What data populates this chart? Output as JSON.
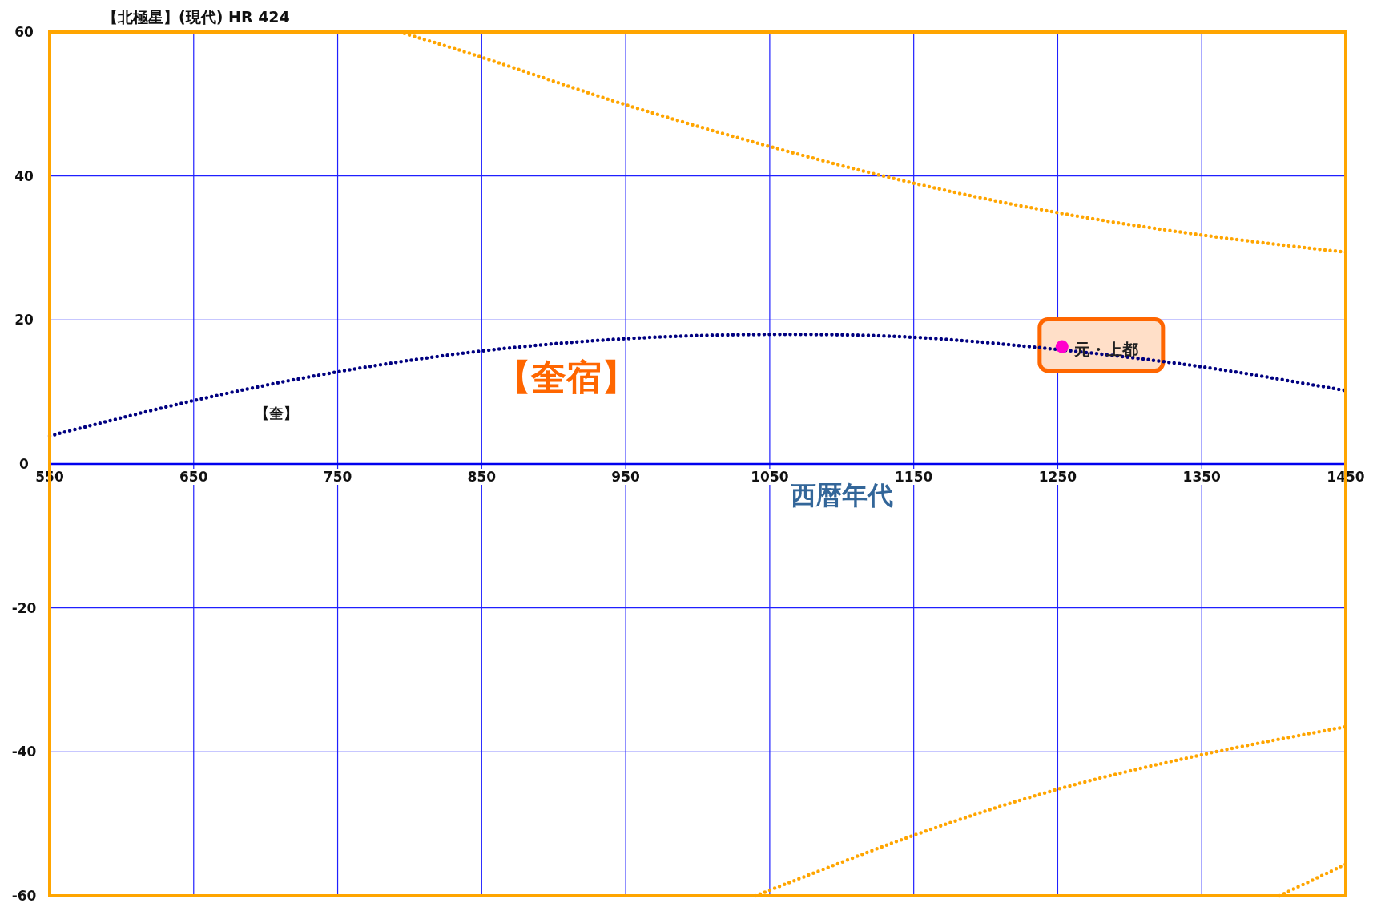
{
  "chart_data": {
    "type": "line",
    "title": "【北極星】(現代) HR 424",
    "xlabel": "西暦年代",
    "xlim": [
      550,
      1450
    ],
    "ylim": [
      -60,
      60
    ],
    "xticks": [
      550,
      650,
      750,
      850,
      950,
      1050,
      1150,
      1250,
      1350,
      1450
    ],
    "yticks": [
      -60,
      -40,
      -20,
      0,
      20,
      40,
      60
    ],
    "grid": true,
    "line_style": "dotted",
    "series": [
      {
        "color": "#000080",
        "x": [
          550,
          650,
          750,
          850,
          950,
          1050,
          1150,
          1250,
          1350,
          1450
        ],
        "values": [
          3.9,
          8.8,
          12.8,
          15.7,
          17.4,
          18.0,
          17.6,
          15.9,
          13.5,
          10.2
        ]
      },
      {
        "color": "#ffa500",
        "x": [
          793,
          850,
          950,
          1050,
          1150,
          1250,
          1350,
          1450
        ],
        "values": [
          60,
          56.5,
          49.9,
          44.1,
          39.0,
          34.9,
          31.8,
          29.4
        ]
      },
      {
        "color": "#ffa500",
        "x": [
          1040,
          1150,
          1250,
          1350,
          1450
        ],
        "values": [
          -60,
          -51.6,
          -45.2,
          -40.4,
          -36.5
        ]
      },
      {
        "color": "#ffa500",
        "x": [
          1404,
          1450
        ],
        "values": [
          -60,
          -55.6
        ]
      },
      {
        "type": "scatter",
        "color": "#ff00cc",
        "x": [
          1253
        ],
        "values": [
          16.3
        ]
      }
    ],
    "annotations": [
      "【奎宿】",
      "【奎】",
      {
        "text": "元・上都",
        "x": 1253,
        "y": 16.3
      }
    ]
  }
}
